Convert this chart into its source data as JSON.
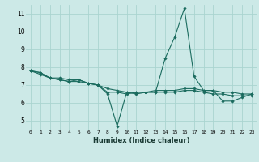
{
  "xlabel": "Humidex (Indice chaleur)",
  "ylabel": "",
  "bg_color": "#cce9e7",
  "grid_color": "#aad4d0",
  "line_color": "#1a6b5e",
  "xlim": [
    -0.5,
    23.5
  ],
  "ylim": [
    4.5,
    11.5
  ],
  "xticks": [
    0,
    1,
    2,
    3,
    4,
    5,
    6,
    7,
    8,
    9,
    10,
    11,
    12,
    13,
    14,
    15,
    16,
    17,
    18,
    19,
    20,
    21,
    22,
    23
  ],
  "yticks": [
    5,
    6,
    7,
    8,
    9,
    10,
    11
  ],
  "series": [
    [
      7.8,
      7.7,
      7.4,
      7.4,
      7.3,
      7.3,
      7.1,
      7.0,
      6.5,
      4.7,
      6.6,
      6.5,
      6.6,
      6.6,
      8.5,
      9.7,
      11.3,
      7.5,
      6.7,
      6.7,
      6.1,
      6.1,
      6.3,
      6.5
    ],
    [
      7.8,
      7.7,
      7.4,
      7.3,
      7.2,
      7.3,
      7.1,
      7.0,
      6.6,
      6.6,
      6.5,
      6.6,
      6.6,
      6.7,
      6.7,
      6.7,
      6.8,
      6.8,
      6.7,
      6.7,
      6.6,
      6.6,
      6.5,
      6.5
    ],
    [
      7.8,
      7.6,
      7.4,
      7.3,
      7.2,
      7.2,
      7.1,
      7.0,
      6.8,
      6.7,
      6.6,
      6.6,
      6.6,
      6.6,
      6.6,
      6.6,
      6.7,
      6.7,
      6.6,
      6.5,
      6.5,
      6.4,
      6.4,
      6.4
    ]
  ]
}
